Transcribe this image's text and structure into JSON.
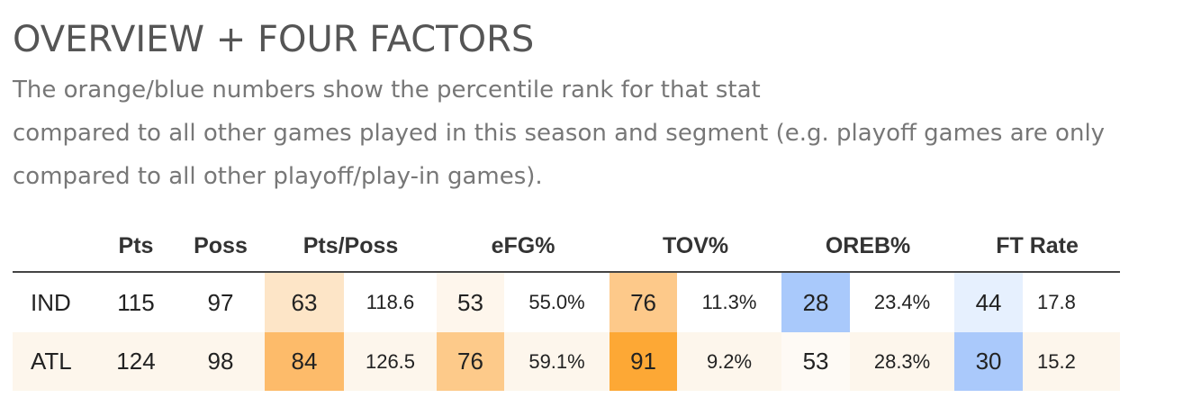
{
  "title": "OVERVIEW + FOUR FACTORS",
  "subtitle_lines": [
    "The orange/blue numbers show the percentile rank for that stat",
    "compared to all other games played in this season and segment (e.g. playoff games are only",
    "compared to all other playoff/play-in games)."
  ],
  "colors": {
    "row_alt_bg": "#fdf6ec",
    "header_rule": "#444444",
    "orange_scale_high": "#fda835",
    "blue_scale_high": "#a9c9fb"
  },
  "chart_data": {
    "type": "table",
    "headers": [
      "",
      "Pts",
      "Poss",
      "Pts/Poss",
      "eFG%",
      "TOV%",
      "OREB%",
      "FT Rate"
    ],
    "rows": [
      {
        "team": "IND",
        "pts": "115",
        "poss": "97",
        "ptsposs_pct": "63",
        "ptsposs": "118.6",
        "ptsposs_bg": "#fde5c7",
        "efg_pct": "53",
        "efg": "55.0%",
        "efg_bg": "#fef6ec",
        "tov_pct": "76",
        "tov": "11.3%",
        "tov_bg": "#fdc98a",
        "oreb_pct": "28",
        "oreb": "23.4%",
        "oreb_bg": "#a9c9fb",
        "ftr_pct": "44",
        "ftr": "17.8",
        "ftr_bg": "#e6f0fe"
      },
      {
        "team": "ATL",
        "pts": "124",
        "poss": "98",
        "ptsposs_pct": "84",
        "ptsposs": "126.5",
        "ptsposs_bg": "#fdbb6a",
        "efg_pct": "76",
        "efg": "59.1%",
        "efg_bg": "#fdca8a",
        "tov_pct": "91",
        "tov": "9.2%",
        "tov_bg": "#fda835",
        "oreb_pct": "53",
        "oreb": "28.3%",
        "oreb_bg": "#fefaf5",
        "ftr_pct": "30",
        "ftr": "15.2",
        "ftr_bg": "#aac9fb"
      }
    ]
  }
}
